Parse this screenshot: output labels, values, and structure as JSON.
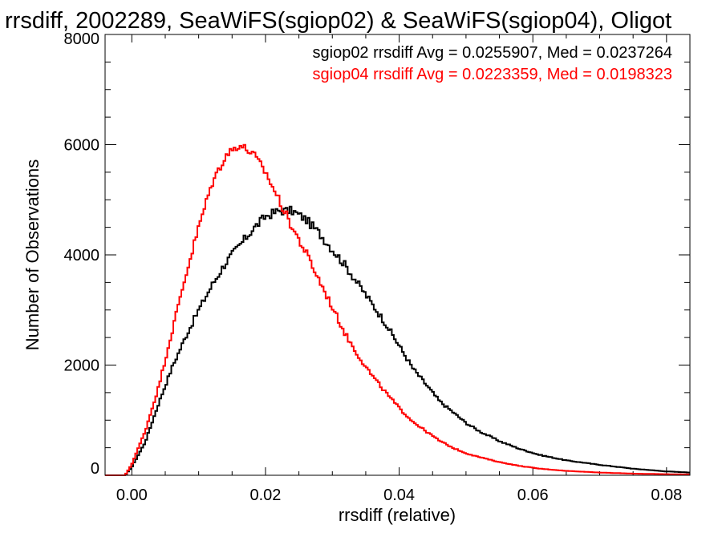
{
  "chart_data": {
    "type": "line",
    "title": "rrsdiff, 2002289, SeaWiFS(sgiop02) & SeaWiFS(sgiop04), Oligot",
    "xlabel": "rrsdiff (relative)",
    "ylabel": "Number of Observations",
    "xlim": [
      -0.004,
      0.0835
    ],
    "ylim": [
      0,
      8000
    ],
    "xticks": [
      0.0,
      0.02,
      0.04,
      0.06,
      0.08
    ],
    "xtick_labels": [
      "0.00",
      "0.02",
      "0.04",
      "0.06",
      "0.08"
    ],
    "yticks": [
      0,
      2000,
      4000,
      6000,
      8000
    ],
    "ytick_labels": [
      "0",
      "2000",
      "4000",
      "6000",
      "8000"
    ],
    "grid": false,
    "legend_position": "top-right",
    "series": [
      {
        "name": "sgiop02",
        "legend_text": "sgiop02 rrsdiff Avg = 0.0255907, Med = 0.0237264",
        "color": "#000000",
        "x": [
          -0.004,
          -0.001,
          0.0,
          0.002,
          0.004,
          0.006,
          0.008,
          0.01,
          0.012,
          0.014,
          0.016,
          0.018,
          0.02,
          0.022,
          0.024,
          0.026,
          0.028,
          0.03,
          0.032,
          0.034,
          0.036,
          0.038,
          0.04,
          0.042,
          0.044,
          0.046,
          0.048,
          0.05,
          0.052,
          0.055,
          0.058,
          0.061,
          0.065,
          0.07,
          0.075,
          0.08,
          0.0835
        ],
        "y": [
          0,
          0,
          150,
          600,
          1300,
          1950,
          2500,
          3000,
          3450,
          3850,
          4150,
          4450,
          4700,
          4800,
          4800,
          4650,
          4400,
          4100,
          3800,
          3450,
          3100,
          2750,
          2350,
          1950,
          1650,
          1350,
          1150,
          950,
          800,
          620,
          480,
          370,
          270,
          190,
          120,
          70,
          50
        ]
      },
      {
        "name": "sgiop04",
        "legend_text": "sgiop04 rrsdiff Avg = 0.0223359, Med = 0.0198323",
        "color": "#ff0000",
        "x": [
          -0.004,
          -0.001,
          0.0,
          0.002,
          0.004,
          0.006,
          0.008,
          0.01,
          0.012,
          0.014,
          0.016,
          0.018,
          0.02,
          0.022,
          0.024,
          0.026,
          0.028,
          0.03,
          0.032,
          0.034,
          0.036,
          0.038,
          0.04,
          0.042,
          0.044,
          0.046,
          0.048,
          0.05,
          0.052,
          0.055,
          0.058,
          0.061,
          0.065,
          0.07,
          0.075,
          0.08,
          0.0835
        ],
        "y": [
          0,
          0,
          200,
          800,
          1600,
          2600,
          3600,
          4500,
          5300,
          5800,
          6000,
          5850,
          5500,
          5000,
          4500,
          4050,
          3550,
          3050,
          2550,
          2150,
          1800,
          1500,
          1220,
          980,
          800,
          630,
          500,
          400,
          330,
          240,
          170,
          120,
          80,
          50,
          30,
          20,
          15
        ]
      }
    ]
  }
}
